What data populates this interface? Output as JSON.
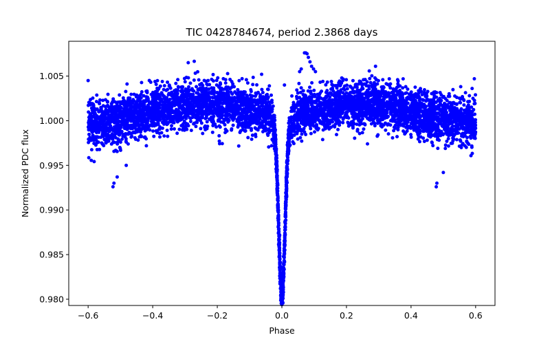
{
  "chart_data": {
    "type": "scatter",
    "title": "TIC 0428784674, period 2.3868 days",
    "xlabel": "Phase",
    "ylabel": "Normalized PDC flux",
    "xlim": [
      -0.66,
      0.66
    ],
    "ylim": [
      0.9793,
      1.0089
    ],
    "x_ticks": [
      -0.6,
      -0.4,
      -0.2,
      0.0,
      0.2,
      0.4,
      0.6
    ],
    "x_tick_labels": [
      "−0.6",
      "−0.4",
      "−0.2",
      "0.0",
      "0.2",
      "0.4",
      "0.6"
    ],
    "y_ticks": [
      0.98,
      0.985,
      0.99,
      0.995,
      1.0,
      1.005
    ],
    "y_tick_labels": [
      "0.980",
      "0.985",
      "0.990",
      "0.995",
      "1.000",
      "1.005"
    ],
    "grid": false,
    "marker_color": "#0000ff",
    "series": [
      {
        "phase_range": [
          -0.6,
          0.6
        ],
        "baseline_flux": 1.0,
        "out_of_transit_hump_amplitude": 0.002,
        "hump_peak_phases": [
          -0.25,
          0.25
        ],
        "scatter_sigma": 0.0013,
        "transit_center_phase": 0.0,
        "transit_min_flux": 0.9802,
        "transit_half_width_phase": 0.018,
        "flare_points": [
          {
            "x": 0.07,
            "y": 1.0076
          },
          {
            "x": 0.074,
            "y": 1.0076
          },
          {
            "x": 0.078,
            "y": 1.0075
          },
          {
            "x": 0.082,
            "y": 1.0071
          },
          {
            "x": 0.087,
            "y": 1.0066
          },
          {
            "x": 0.092,
            "y": 1.0061
          },
          {
            "x": 0.098,
            "y": 1.0058
          },
          {
            "x": 0.104,
            "y": 1.0055
          },
          {
            "x": 0.06,
            "y": 1.0058
          },
          {
            "x": 0.055,
            "y": 1.0055
          }
        ],
        "outlier_points": [
          {
            "x": -0.523,
            "y": 0.9926
          },
          {
            "x": -0.52,
            "y": 0.993
          },
          {
            "x": -0.51,
            "y": 0.9937
          },
          {
            "x": -0.482,
            "y": 0.995
          },
          {
            "x": 0.478,
            "y": 0.9926
          },
          {
            "x": 0.48,
            "y": 0.993
          },
          {
            "x": 0.5,
            "y": 0.9942
          },
          {
            "x": -0.6,
            "y": 1.0045
          },
          {
            "x": 0.596,
            "y": 1.0047
          },
          {
            "x": -0.29,
            "y": 1.0065
          },
          {
            "x": 0.29,
            "y": 1.0061
          },
          {
            "x": 0.008,
            "y": 1.004
          }
        ]
      }
    ]
  }
}
